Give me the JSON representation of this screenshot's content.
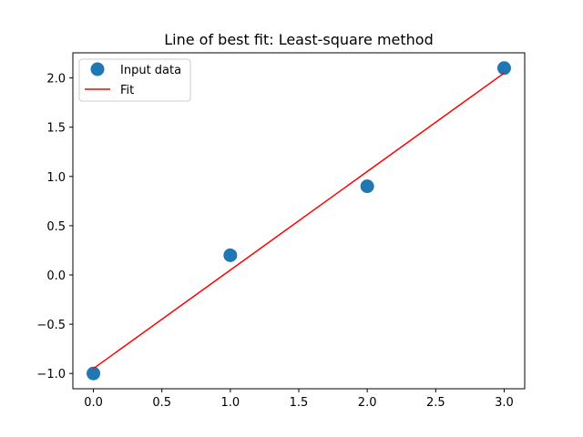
{
  "chart_data": {
    "type": "scatter",
    "title": "Line of best fit: Least-square method",
    "xlabel": "",
    "ylabel": "",
    "xlim": [
      -0.15,
      3.15
    ],
    "ylim": [
      -1.155,
      2.255
    ],
    "xticks": [
      0.0,
      0.5,
      1.0,
      1.5,
      2.0,
      2.5,
      3.0
    ],
    "xtick_labels": [
      "0.0",
      "0.5",
      "1.0",
      "1.5",
      "2.0",
      "2.5",
      "3.0"
    ],
    "yticks": [
      -1.0,
      -0.5,
      0.0,
      0.5,
      1.0,
      1.5,
      2.0
    ],
    "ytick_labels": [
      "−1.0",
      "−0.5",
      "0.0",
      "0.5",
      "1.0",
      "1.5",
      "2.0"
    ],
    "grid": false,
    "legend_position": "top-left",
    "series": [
      {
        "name": "Input data",
        "kind": "scatter",
        "color": "#1f77b4",
        "x": [
          0,
          1,
          2,
          3
        ],
        "y": [
          -1.0,
          0.2,
          0.9,
          2.1
        ]
      },
      {
        "name": "Fit",
        "kind": "line",
        "color": "#ff0000",
        "x": [
          0,
          3
        ],
        "y": [
          -0.95,
          2.05
        ]
      }
    ]
  }
}
